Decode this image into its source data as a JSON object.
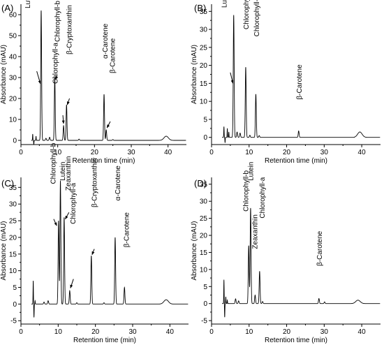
{
  "chart_data": [
    {
      "type": "line",
      "panel_label": "(A)",
      "xlabel": "Retention time (min)",
      "ylabel": "Absorbance (mAU)",
      "xlim": [
        0,
        45
      ],
      "ylim": [
        -2,
        65
      ],
      "xticks": [
        0,
        10,
        20,
        30,
        40
      ],
      "yticks": [
        0,
        10,
        20,
        30,
        40,
        50,
        60
      ],
      "baseline": 0,
      "drift": [
        [
          37.5,
          0
        ],
        [
          39.5,
          2
        ],
        [
          41.5,
          0
        ]
      ],
      "noise": [
        [
          3.2,
          3
        ],
        [
          3.5,
          -2
        ],
        [
          4.1,
          2
        ]
      ],
      "peaks": [
        {
          "rt": 5.5,
          "height": 62.0,
          "label": "Lutein + zeaxanthin",
          "label_x": 2.5,
          "label_y": 63,
          "arrow": true,
          "arrow_x": 4.3,
          "arrow_y": 33,
          "tip_x": 5.3,
          "tip_y": 27
        },
        {
          "rt": 9.2,
          "height": 30.0,
          "label": "Chlorophyll-b",
          "label_x": 10.5,
          "label_y": 47,
          "arrow": true,
          "arrow_x": 9.8,
          "arrow_y": 31,
          "tip_x": 9.4,
          "tip_y": 29
        },
        {
          "rt": 11.6,
          "height": 7.0,
          "label": "Chlorophyll-a",
          "label_x": 10.0,
          "label_y": 27,
          "arrow": true,
          "arrow_x": 11.4,
          "arrow_y": 12,
          "tip_x": 11.6,
          "tip_y": 8
        },
        {
          "rt": 12.4,
          "height": 17.0,
          "label": "β-Cryptoxanthin",
          "label_x": 13.8,
          "label_y": 41,
          "arrow": true,
          "arrow_x": 13.2,
          "arrow_y": 20,
          "tip_x": 12.6,
          "tip_y": 17
        },
        {
          "rt": 22.6,
          "height": 22.0,
          "label": "α-Carotene",
          "label_x": 23.5,
          "label_y": 39,
          "arrow": false
        },
        {
          "rt": 23.2,
          "height": 5.0,
          "label": "β-Carotene",
          "label_x": 25.5,
          "label_y": 32,
          "arrow": true,
          "arrow_x": 24.3,
          "arrow_y": 9,
          "tip_x": 23.4,
          "tip_y": 6
        }
      ],
      "minor_peaks": [
        [
          6.8,
          1.0
        ],
        [
          7.8,
          1.5
        ],
        [
          15.8,
          0.6
        ],
        [
          25.0,
          0.4
        ]
      ]
    },
    {
      "type": "line",
      "panel_label": "(B)",
      "xlabel": "Retention time (min)",
      "ylabel": "Absorbance (mAU)",
      "xlim": [
        0,
        45
      ],
      "ylim": [
        -2,
        37
      ],
      "xticks": [
        0,
        10,
        20,
        30,
        40
      ],
      "yticks": [
        0,
        5,
        10,
        15,
        20,
        25,
        30,
        35
      ],
      "baseline": 0,
      "drift": [
        [
          38.0,
          0
        ],
        [
          39.5,
          1.5
        ],
        [
          41.5,
          0
        ]
      ],
      "noise": [
        [
          3.3,
          3
        ],
        [
          3.6,
          -1.5
        ],
        [
          4.2,
          2.5
        ],
        [
          4.6,
          1.5
        ]
      ],
      "peaks": [
        {
          "rt": 5.9,
          "height": 34.0,
          "label": "Lutein + zeaxanthin",
          "label_x": 4.0,
          "label_y": 36,
          "arrow": true,
          "arrow_x": 5.0,
          "arrow_y": 18,
          "tip_x": 5.7,
          "tip_y": 15
        },
        {
          "rt": 9.1,
          "height": 19.5,
          "label": "Chlorophyll-b",
          "label_x": 9.9,
          "label_y": 30,
          "arrow": false
        },
        {
          "rt": 11.8,
          "height": 12.0,
          "label": "Chlorophyll-a",
          "label_x": 12.6,
          "label_y": 28,
          "arrow": false
        },
        {
          "rt": 23.2,
          "height": 1.8,
          "label": "β-Carotene",
          "label_x": 24.0,
          "label_y": 10.5,
          "arrow": false
        }
      ],
      "minor_peaks": [
        [
          6.8,
          1.5
        ],
        [
          7.6,
          1.2
        ],
        [
          10.2,
          0.6
        ],
        [
          12.7,
          0.5
        ]
      ]
    },
    {
      "type": "line",
      "panel_label": "(C)",
      "xlabel": "Retention time (min)",
      "ylabel": "Absorbance (mAU)",
      "xlim": [
        0,
        45
      ],
      "ylim": [
        -6,
        38
      ],
      "xticks": [
        0,
        10,
        20,
        30,
        40
      ],
      "yticks": [
        -5,
        0,
        5,
        10,
        15,
        20,
        25,
        30,
        35
      ],
      "baseline": 0,
      "drift": [
        [
          37.0,
          0
        ],
        [
          39.0,
          1.3
        ],
        [
          41.0,
          0
        ]
      ],
      "noise": [
        [
          3.3,
          7
        ],
        [
          3.5,
          -4
        ],
        [
          3.8,
          1
        ]
      ],
      "peaks": [
        {
          "rt": 10.1,
          "height": 25.0,
          "label": "Chlorophyll-b",
          "label_x": 9.3,
          "label_y": 36,
          "arrow": true,
          "arrow_x": 8.8,
          "arrow_y": 25.5,
          "tip_x": 9.6,
          "tip_y": 23.5
        },
        {
          "rt": 10.6,
          "height": 37.0,
          "label": "Lutein",
          "label_x": 11.8,
          "label_y": 37,
          "arrow": false
        },
        {
          "rt": 11.6,
          "height": 26.0,
          "label": "Zeaxanthin",
          "label_x": 13.3,
          "label_y": 34,
          "arrow": true,
          "arrow_x": 12.9,
          "arrow_y": 27.5,
          "tip_x": 11.9,
          "tip_y": 25.5
        },
        {
          "rt": 13.1,
          "height": 4.0,
          "label": "Chlorophyll-a",
          "label_x": 14.6,
          "label_y": 24,
          "arrow": true,
          "arrow_x": 14.1,
          "arrow_y": 7.5,
          "tip_x": 13.3,
          "tip_y": 4.8
        },
        {
          "rt": 18.9,
          "height": 14.5,
          "label": "β-Cryptoxanthin",
          "label_x": 20.3,
          "label_y": 29,
          "arrow": true,
          "arrow_x": 19.7,
          "arrow_y": 16.5,
          "tip_x": 19.1,
          "tip_y": 14.8
        },
        {
          "rt": 25.3,
          "height": 20.0,
          "label": "α-Carotene",
          "label_x": 26.6,
          "label_y": 31,
          "arrow": false
        },
        {
          "rt": 27.8,
          "height": 5.0,
          "label": "β-Carotene",
          "label_x": 29.0,
          "label_y": 17,
          "arrow": false
        }
      ],
      "minor_peaks": [
        [
          6.2,
          0.6
        ],
        [
          7.3,
          1.0
        ],
        [
          15.0,
          0.4
        ],
        [
          22.3,
          0.4
        ]
      ]
    },
    {
      "type": "line",
      "panel_label": "(D)",
      "xlabel": "Retention time (min)",
      "ylabel": "Absorbance (mAU)",
      "xlim": [
        0,
        45
      ],
      "ylim": [
        -6,
        37
      ],
      "xticks": [
        0,
        10,
        20,
        30,
        40
      ],
      "yticks": [
        -5,
        0,
        5,
        10,
        15,
        20,
        25,
        30,
        35
      ],
      "baseline": 0,
      "drift": [
        [
          37.0,
          0
        ],
        [
          39.0,
          1.0
        ],
        [
          41.0,
          0
        ]
      ],
      "noise": [
        [
          3.3,
          7
        ],
        [
          3.5,
          -4
        ],
        [
          3.8,
          2
        ],
        [
          4.2,
          1
        ]
      ],
      "peaks": [
        {
          "rt": 9.9,
          "height": 17.0,
          "label": "Chlorophyll-b",
          "label_x": 9.8,
          "label_y": 27,
          "arrow": false
        },
        {
          "rt": 10.4,
          "height": 28.0,
          "label": "Lutein",
          "label_x": 11.1,
          "label_y": 36,
          "arrow": false
        },
        {
          "rt": 11.6,
          "height": 2.5,
          "label": "Zeaxanthin",
          "label_x": 12.2,
          "label_y": 16,
          "arrow": false
        },
        {
          "rt": 12.8,
          "height": 9.5,
          "label": "Chlorophyll-a",
          "label_x": 14.1,
          "label_y": 25,
          "arrow": false
        },
        {
          "rt": 28.6,
          "height": 1.5,
          "label": "β-Carotene",
          "label_x": 29.4,
          "label_y": 11,
          "arrow": false
        }
      ],
      "minor_peaks": [
        [
          6.4,
          1.4
        ],
        [
          7.2,
          0.8
        ],
        [
          13.6,
          0.6
        ],
        [
          30.1,
          0.5
        ]
      ]
    }
  ]
}
